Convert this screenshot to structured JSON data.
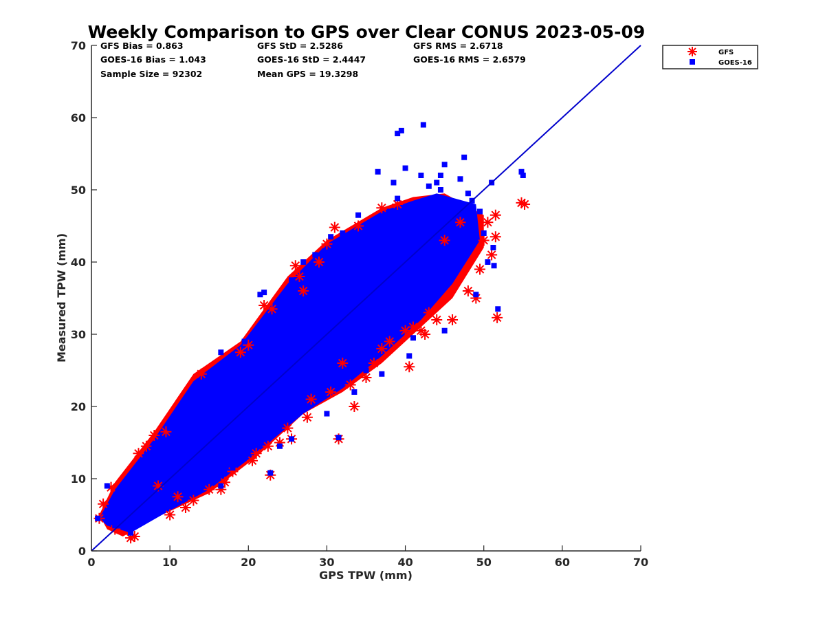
{
  "chart_data": {
    "type": "scatter",
    "title": "Weekly Comparison to GPS over Clear CONUS 2023-05-09",
    "xlabel": "GPS TPW (mm)",
    "ylabel": "Measured TPW (mm)",
    "xlim": [
      0,
      70
    ],
    "ylim": [
      0,
      70
    ],
    "xticks": [
      "0",
      "10",
      "20",
      "30",
      "40",
      "50",
      "60",
      "70"
    ],
    "yticks": [
      "0",
      "10",
      "20",
      "30",
      "40",
      "50",
      "60",
      "70"
    ],
    "grid": false,
    "legend_position": "outside-top-right",
    "stats": [
      [
        "GFS Bias = 0.863",
        "GFS StD = 2.5286",
        "GFS RMS = 2.6718"
      ],
      [
        "GOES-16 Bias = 1.043",
        "GOES-16 StD = 2.4447",
        "GOES-16 RMS = 2.6579"
      ],
      [
        "Sample Size = 92302",
        "Mean GPS = 19.3298",
        ""
      ]
    ],
    "reference_line": {
      "x": [
        0,
        70
      ],
      "y": [
        0,
        70
      ],
      "color": "#0000cc"
    },
    "series": [
      {
        "name": "GFS",
        "marker": "asterisk",
        "color": "#ff0000",
        "points": [
          [
            1.0,
            4.5
          ],
          [
            1.5,
            6.5
          ],
          [
            2.5,
            8.8
          ],
          [
            3.0,
            3.0
          ],
          [
            5.0,
            1.8
          ],
          [
            5.5,
            2.0
          ],
          [
            6.0,
            13.5
          ],
          [
            7.0,
            14.5
          ],
          [
            8.0,
            16.0
          ],
          [
            9.5,
            16.5
          ],
          [
            10.0,
            5.0
          ],
          [
            12.0,
            6.0
          ],
          [
            13.0,
            7.0
          ],
          [
            14.0,
            24.5
          ],
          [
            15.0,
            8.5
          ],
          [
            16.5,
            8.5
          ],
          [
            17.0,
            9.5
          ],
          [
            18.0,
            11.0
          ],
          [
            19.0,
            27.5
          ],
          [
            20.0,
            28.5
          ],
          [
            21.0,
            13.5
          ],
          [
            22.0,
            34.0
          ],
          [
            22.5,
            14.5
          ],
          [
            22.8,
            10.5
          ],
          [
            23.0,
            33.5
          ],
          [
            24.0,
            15.0
          ],
          [
            25.0,
            17.0
          ],
          [
            25.5,
            15.5
          ],
          [
            26.0,
            39.5
          ],
          [
            26.5,
            38.0
          ],
          [
            27.0,
            36.0
          ],
          [
            28.0,
            21.0
          ],
          [
            29.0,
            40.0
          ],
          [
            30.0,
            42.5
          ],
          [
            30.5,
            22.0
          ],
          [
            31.0,
            44.8
          ],
          [
            31.5,
            15.5
          ],
          [
            32.0,
            26.0
          ],
          [
            33.0,
            23.0
          ],
          [
            34.0,
            45.0
          ],
          [
            35.0,
            24.0
          ],
          [
            36.0,
            26.0
          ],
          [
            37.0,
            47.5
          ],
          [
            38.0,
            29.0
          ],
          [
            39.0,
            48.0
          ],
          [
            40.0,
            30.5
          ],
          [
            40.5,
            25.5
          ],
          [
            41.0,
            31.0
          ],
          [
            42.0,
            30.5
          ],
          [
            43.0,
            33.0
          ],
          [
            44.0,
            32.0
          ],
          [
            45.0,
            43.0
          ],
          [
            46.0,
            32.0
          ],
          [
            47.0,
            45.5
          ],
          [
            48.0,
            36.0
          ],
          [
            49.0,
            35.0
          ],
          [
            49.5,
            39.0
          ],
          [
            50.0,
            43.0
          ],
          [
            51.0,
            41.0
          ],
          [
            51.5,
            43.5
          ],
          [
            51.7,
            32.3
          ],
          [
            51.5,
            46.5
          ],
          [
            50.5,
            45.5
          ],
          [
            54.8,
            48.2
          ],
          [
            55.2,
            48.0
          ],
          [
            8.5,
            9.0
          ],
          [
            11.0,
            7.5
          ],
          [
            20.5,
            12.5
          ],
          [
            27.5,
            18.5
          ],
          [
            33.5,
            20.0
          ],
          [
            37.0,
            28.0
          ],
          [
            42.5,
            30.0
          ]
        ]
      },
      {
        "name": "GOES-16",
        "marker": "square",
        "color": "#0000ff",
        "points": [
          [
            0.8,
            4.5
          ],
          [
            2.0,
            9.0
          ],
          [
            3.0,
            3.5
          ],
          [
            5.0,
            2.5
          ],
          [
            8.0,
            14.5
          ],
          [
            10.0,
            17.0
          ],
          [
            12.0,
            8.0
          ],
          [
            14.0,
            23.0
          ],
          [
            16.5,
            27.5
          ],
          [
            16.5,
            9.0
          ],
          [
            18.0,
            11.5
          ],
          [
            19.5,
            29.0
          ],
          [
            21.5,
            35.5
          ],
          [
            22.0,
            35.8
          ],
          [
            22.8,
            10.8
          ],
          [
            24.0,
            14.5
          ],
          [
            25.5,
            37.5
          ],
          [
            25.5,
            15.5
          ],
          [
            27.0,
            40.0
          ],
          [
            28.5,
            41.0
          ],
          [
            30.0,
            19.0
          ],
          [
            31.5,
            15.7
          ],
          [
            32.0,
            44.0
          ],
          [
            33.5,
            22.0
          ],
          [
            35.0,
            25.0
          ],
          [
            36.0,
            45.5
          ],
          [
            37.0,
            24.5
          ],
          [
            38.0,
            47.0
          ],
          [
            38.5,
            51.0
          ],
          [
            39.0,
            57.8
          ],
          [
            39.5,
            58.2
          ],
          [
            40.0,
            53.0
          ],
          [
            40.5,
            27.0
          ],
          [
            41.0,
            29.5
          ],
          [
            42.0,
            52.0
          ],
          [
            42.3,
            59.0
          ],
          [
            43.0,
            50.5
          ],
          [
            44.0,
            51.0
          ],
          [
            44.5,
            52.0
          ],
          [
            45.0,
            53.5
          ],
          [
            45.0,
            30.5
          ],
          [
            46.0,
            45.5
          ],
          [
            46.5,
            43.0
          ],
          [
            47.5,
            54.5
          ],
          [
            48.0,
            49.5
          ],
          [
            48.5,
            48.5
          ],
          [
            49.0,
            35.5
          ],
          [
            49.5,
            47.0
          ],
          [
            50.0,
            44.0
          ],
          [
            50.5,
            40.0
          ],
          [
            51.0,
            51.0
          ],
          [
            51.2,
            42.0
          ],
          [
            51.3,
            39.5
          ],
          [
            51.8,
            33.5
          ],
          [
            54.8,
            52.5
          ],
          [
            55.0,
            52.0
          ],
          [
            36.5,
            52.5
          ],
          [
            39.0,
            48.8
          ],
          [
            44.5,
            50.0
          ],
          [
            47.0,
            51.5
          ],
          [
            34.0,
            46.5
          ],
          [
            30.5,
            43.5
          ]
        ]
      }
    ]
  }
}
